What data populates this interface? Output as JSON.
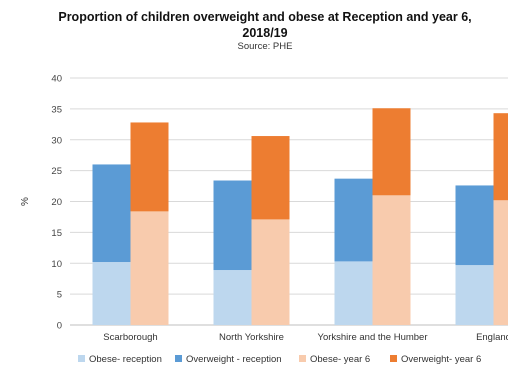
{
  "chart_data": {
    "type": "bar",
    "stacked": true,
    "title_line1": "Proportion of children overweight and obese at Reception and year 6,",
    "title_line2": "2018/19",
    "subtitle": "Source: PHE",
    "ylabel": "%",
    "ylim": [
      0,
      40
    ],
    "yticks": [
      "0",
      "5",
      "10",
      "15",
      "20",
      "25",
      "30",
      "35",
      "40"
    ],
    "grid": true,
    "legend_position": "bottom",
    "categories": [
      "Scarborough",
      "North Yorkshire",
      "Yorkshire and the Humber",
      "England"
    ],
    "groups": [
      {
        "name": "reception",
        "series": [
          {
            "name": "Obese- reception",
            "color": "#bdd7ee",
            "values": [
              10.2,
              8.9,
              10.3,
              9.7
            ]
          },
          {
            "name": "Overweight - reception",
            "color": "#5b9bd5",
            "values": [
              15.8,
              14.5,
              13.4,
              12.9
            ]
          }
        ]
      },
      {
        "name": "year6",
        "series": [
          {
            "name": "Obese- year 6",
            "color": "#f8cbad",
            "values": [
              18.4,
              17.1,
              21.0,
              20.2
            ]
          },
          {
            "name": "Overweight- year 6",
            "color": "#ed7d31",
            "values": [
              14.4,
              13.5,
              14.1,
              14.1
            ]
          }
        ]
      }
    ]
  }
}
